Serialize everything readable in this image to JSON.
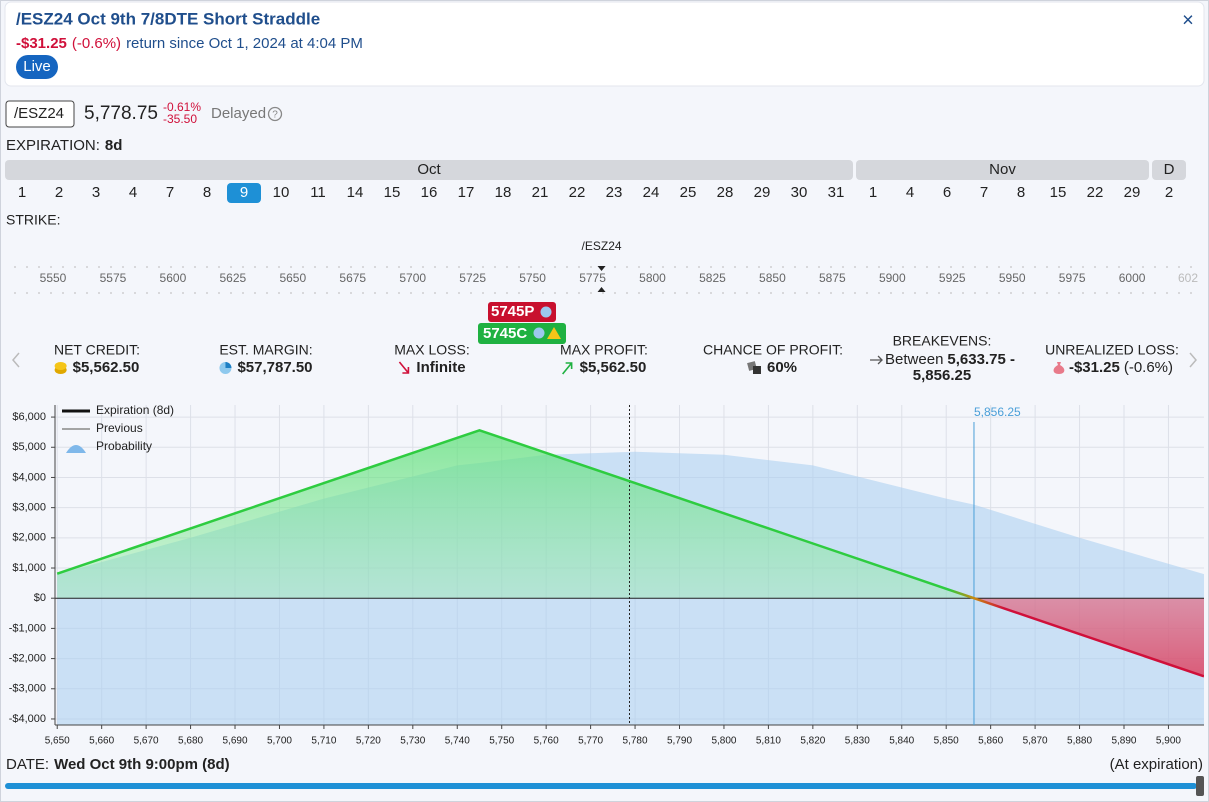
{
  "header": {
    "title": "/ESZ24 Oct 9th 7/8DTE Short Straddle",
    "return_value": "-$31.25",
    "return_pct": "(-0.6%)",
    "return_text": "return since Oct 1, 2024 at 4:04 PM",
    "status": "Live",
    "close": "×"
  },
  "quote": {
    "symbol": "/ESZ24",
    "price": "5,778.75",
    "change_pct": "-0.61%",
    "change": "-35.50",
    "delay": "Delayed",
    "help": "?"
  },
  "expiration": {
    "label": "EXPIRATION:",
    "value": "8d",
    "selected": {
      "month": "Oct",
      "day": 9
    },
    "months": [
      {
        "name": "Oct",
        "days": [
          1,
          2,
          3,
          4,
          7,
          8,
          9,
          10,
          11,
          14,
          15,
          16,
          17,
          18,
          21,
          22,
          23,
          24,
          25,
          28,
          29,
          30,
          31
        ]
      },
      {
        "name": "Nov",
        "days": [
          1,
          4,
          6,
          7,
          8,
          15,
          22,
          29
        ]
      },
      {
        "name": "D",
        "days": [
          2
        ]
      }
    ]
  },
  "strike": {
    "label": "STRIKE:",
    "underlying": "/ESZ24",
    "strikes": [
      5550,
      5575,
      5600,
      5625,
      5650,
      5675,
      5700,
      5725,
      5750,
      5775,
      5800,
      5825,
      5850,
      5875,
      5900,
      5925,
      5950,
      5975,
      6000
    ],
    "partial": "602",
    "legs": [
      "5745P",
      "5745C"
    ]
  },
  "stats": [
    {
      "label": "NET CREDIT:",
      "value": "$5,562.50"
    },
    {
      "label": "EST. MARGIN:",
      "value": "$57,787.50"
    },
    {
      "label": "MAX LOSS:",
      "value": "Infinite"
    },
    {
      "label": "MAX PROFIT:",
      "value": "$5,562.50"
    },
    {
      "label": "CHANCE OF PROFIT:",
      "value": "60%"
    },
    {
      "label": "BREAKEVENS:",
      "prefix": "Between",
      "lines": [
        "5,633.75 -",
        "5,856.25"
      ]
    },
    {
      "label": "UNREALIZED LOSS:",
      "value": "-$31.25",
      "extra": "(-0.6%)"
    }
  ],
  "chart_data": {
    "type": "line",
    "x": [
      5650,
      5680,
      5710,
      5740,
      5745,
      5760,
      5780,
      5800,
      5820,
      5850,
      5856.25,
      5880,
      5908
    ],
    "series": [
      {
        "name": "Expiration (8d)",
        "color": "#2ecc40",
        "loss_color": "#d0103a",
        "values": [
          812.5,
          2312.5,
          3812.5,
          5312.5,
          5562.5,
          4812.5,
          3812.5,
          2812.5,
          1812.5,
          312.5,
          0,
          -1187.5,
          -2587.5
        ]
      },
      {
        "name": "Previous",
        "color": "#888888",
        "values": [
          null,
          null,
          null,
          null,
          null,
          null,
          null,
          null,
          null,
          null,
          null,
          null,
          null
        ]
      },
      {
        "name": "Probability",
        "color": "#a8cdf0",
        "values": [
          800,
          2000,
          3300,
          4400,
          4480,
          4750,
          4850,
          4750,
          4400,
          3300,
          3100,
          2000,
          800
        ]
      }
    ],
    "xlim": [
      5649.5,
      5908
    ],
    "ylim": [
      -4200,
      6400
    ],
    "xticks": [
      {
        "value": 5650,
        "label": "5,650"
      },
      {
        "value": 5660,
        "label": "5,660"
      },
      {
        "value": 5670,
        "label": "5,670"
      },
      {
        "value": 5680,
        "label": "5,680"
      },
      {
        "value": 5690,
        "label": "5,690"
      },
      {
        "value": 5700,
        "label": "5,700"
      },
      {
        "value": 5710,
        "label": "5,710"
      },
      {
        "value": 5720,
        "label": "5,720"
      },
      {
        "value": 5730,
        "label": "5,730"
      },
      {
        "value": 5740,
        "label": "5,740"
      },
      {
        "value": 5750,
        "label": "5,750"
      },
      {
        "value": 5760,
        "label": "5,760"
      },
      {
        "value": 5770,
        "label": "5,770"
      },
      {
        "value": 5780,
        "label": "5,780"
      },
      {
        "value": 5790,
        "label": "5,790"
      },
      {
        "value": 5800,
        "label": "5,800"
      },
      {
        "value": 5810,
        "label": "5,810"
      },
      {
        "value": 5820,
        "label": "5,820"
      },
      {
        "value": 5830,
        "label": "5,830"
      },
      {
        "value": 5840,
        "label": "5,840"
      },
      {
        "value": 5850,
        "label": "5,850"
      },
      {
        "value": 5860,
        "label": "5,860"
      },
      {
        "value": 5870,
        "label": "5,870"
      },
      {
        "value": 5880,
        "label": "5,880"
      },
      {
        "value": 5890,
        "label": "5,890"
      },
      {
        "value": 5900,
        "label": "5,900"
      }
    ],
    "yticks": [
      {
        "value": 6000,
        "label": "$6,000"
      },
      {
        "value": 5000,
        "label": "$5,000"
      },
      {
        "value": 4000,
        "label": "$4,000"
      },
      {
        "value": 3000,
        "label": "$3,000"
      },
      {
        "value": 2000,
        "label": "$2,000"
      },
      {
        "value": 1000,
        "label": "$1,000"
      },
      {
        "value": 0,
        "label": "$0"
      },
      {
        "value": -1000,
        "label": "-$1,000"
      },
      {
        "value": -2000,
        "label": "-$2,000"
      },
      {
        "value": -3000,
        "label": "-$3,000"
      },
      {
        "value": -4000,
        "label": "-$4,000"
      }
    ],
    "grid": true,
    "legend": "top-left",
    "breakeven": {
      "value": 5856.25,
      "label": "5,856.25"
    },
    "current_price": 5778.75
  },
  "footer": {
    "label": "DATE:",
    "value": "Wed Oct 9th 9:00pm (8d)",
    "note": "(At expiration)"
  }
}
